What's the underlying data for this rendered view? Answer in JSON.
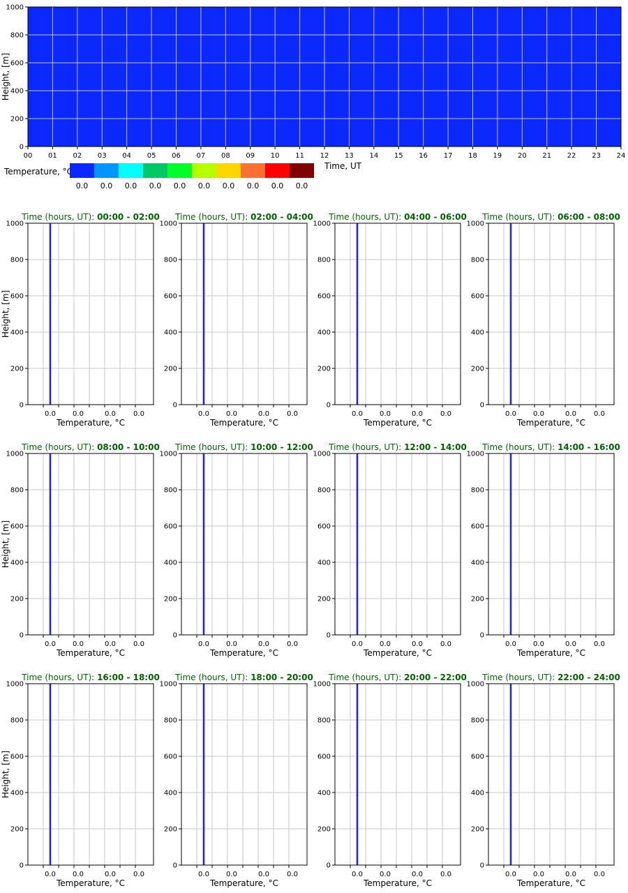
{
  "chart_data": [
    {
      "type": "heatmap",
      "xlabel": "Time, UT",
      "ylabel": "Height, [m]",
      "xlim": [
        0,
        24
      ],
      "ylim": [
        0,
        1000
      ],
      "x_ticks": [
        "00",
        "01",
        "02",
        "03",
        "04",
        "05",
        "06",
        "07",
        "08",
        "09",
        "10",
        "11",
        "12",
        "13",
        "14",
        "15",
        "16",
        "17",
        "18",
        "19",
        "20",
        "21",
        "22",
        "23",
        "24"
      ],
      "y_ticks": [
        0,
        200,
        400,
        600,
        800,
        1000
      ],
      "grid": true,
      "values": "uniform 0.0",
      "fill_color": "#0a28ff",
      "colorbar": {
        "label": "Temperature, °C",
        "colors": [
          "#0a28ff",
          "#0096ff",
          "#00ffff",
          "#00c864",
          "#00ff28",
          "#b4ff00",
          "#ffd700",
          "#ff6e32",
          "#ff0000",
          "#800000"
        ],
        "values": [
          "0.0",
          "0.0",
          "0.0",
          "0.0",
          "0.0",
          "0.0",
          "0.0",
          "0.0",
          "0.0",
          "0.0"
        ]
      }
    },
    {
      "type": "line",
      "panels": [
        {
          "title_prefix": "Time (hours, UT):",
          "title_range": "00:00 - 02:00",
          "temperature": 0.0
        },
        {
          "title_prefix": "Time (hours, UT):",
          "title_range": "02:00 - 04:00",
          "temperature": 0.0
        },
        {
          "title_prefix": "Time (hours, UT):",
          "title_range": "04:00 - 06:00",
          "temperature": 0.0
        },
        {
          "title_prefix": "Time (hours, UT):",
          "title_range": "06:00 - 08:00",
          "temperature": 0.0
        },
        {
          "title_prefix": "Time (hours, UT):",
          "title_range": "08:00 - 10:00",
          "temperature": 0.0
        },
        {
          "title_prefix": "Time (hours, UT):",
          "title_range": "10:00 - 12:00",
          "temperature": 0.0
        },
        {
          "title_prefix": "Time (hours, UT):",
          "title_range": "12:00 - 14:00",
          "temperature": 0.0
        },
        {
          "title_prefix": "Time (hours, UT):",
          "title_range": "14:00 - 16:00",
          "temperature": 0.0
        },
        {
          "title_prefix": "Time (hours, UT):",
          "title_range": "16:00 - 18:00",
          "temperature": 0.0
        },
        {
          "title_prefix": "Time (hours, UT):",
          "title_range": "18:00 - 20:00",
          "temperature": 0.0
        },
        {
          "title_prefix": "Time (hours, UT):",
          "title_range": "20:00 - 22:00",
          "temperature": 0.0
        },
        {
          "title_prefix": "Time (hours, UT):",
          "title_range": "22:00 - 24:00",
          "temperature": 0.0
        }
      ],
      "xlabel": "Temperature, °C",
      "ylabel": "Height, [m]",
      "x_tick_labels": [
        "0.0",
        "0.0",
        "0.0",
        "0.0"
      ],
      "y_ticks": [
        0,
        200,
        400,
        600,
        800,
        1000
      ],
      "ylim": [
        0,
        1000
      ],
      "grid": true,
      "line_color": "#1e1eff",
      "title_color": "#006400"
    }
  ]
}
